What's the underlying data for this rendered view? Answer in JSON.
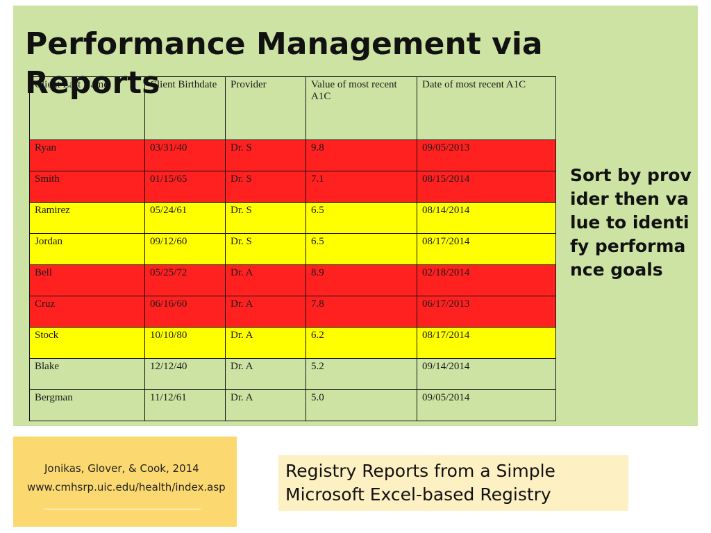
{
  "slide": {
    "title": "Performance Management via Reports",
    "side_note": "Sort by provider then value to identify performance goals",
    "citation": {
      "authors": "Jonikas, Glover, & Cook, 2014",
      "url": "www.cmhsrp.uic.edu/health/index.asp"
    },
    "caption": "Registry Reports from a Simple Microsoft Excel-based Registry"
  },
  "table": {
    "headers": [
      "Client Last Name",
      "Client Birthdate",
      "Provider",
      "Value of most recent A1C",
      "Date of most recent A1C"
    ],
    "rows": [
      {
        "status": "red",
        "cells": [
          "Ryan",
          "03/31/40",
          " Dr. S",
          "9.8",
          "09/05/2013"
        ]
      },
      {
        "status": "red",
        "cells": [
          "Smith",
          "01/15/65",
          " Dr. S",
          "7.1",
          "08/15/2014"
        ]
      },
      {
        "status": "yellow",
        "cells": [
          "Ramirez",
          "05/24/61",
          " Dr. S",
          "6.5",
          "08/14/2014"
        ]
      },
      {
        "status": "yellow",
        "cells": [
          "Jordan",
          "09/12/60",
          " Dr. S",
          "6.5",
          "08/17/2014"
        ]
      },
      {
        "status": "red",
        "cells": [
          "Bell",
          "05/25/72",
          " Dr.  A",
          "8.9",
          "02/18/2014"
        ]
      },
      {
        "status": "red",
        "cells": [
          "Cruz",
          "06/16/60",
          " Dr.  A",
          "7.8",
          "06/17/2013"
        ]
      },
      {
        "status": "yellow",
        "cells": [
          "Stock",
          "10/10/80",
          "Dr. A",
          "6.2",
          "08/17/2014"
        ]
      },
      {
        "status": "none",
        "cells": [
          "Blake",
          "12/12/40",
          "Dr. A",
          "5.2",
          "09/14/2014"
        ]
      },
      {
        "status": "none",
        "cells": [
          "Bergman",
          "11/12/61",
          "Dr. A",
          "5.0",
          "09/05/2014"
        ]
      }
    ]
  },
  "colors": {
    "panel_background": "#cde3a3",
    "row_red": "#ff2020",
    "row_yellow": "#ffff00",
    "citation_background": "#fcd970",
    "caption_background": "#fdf0c2"
  }
}
